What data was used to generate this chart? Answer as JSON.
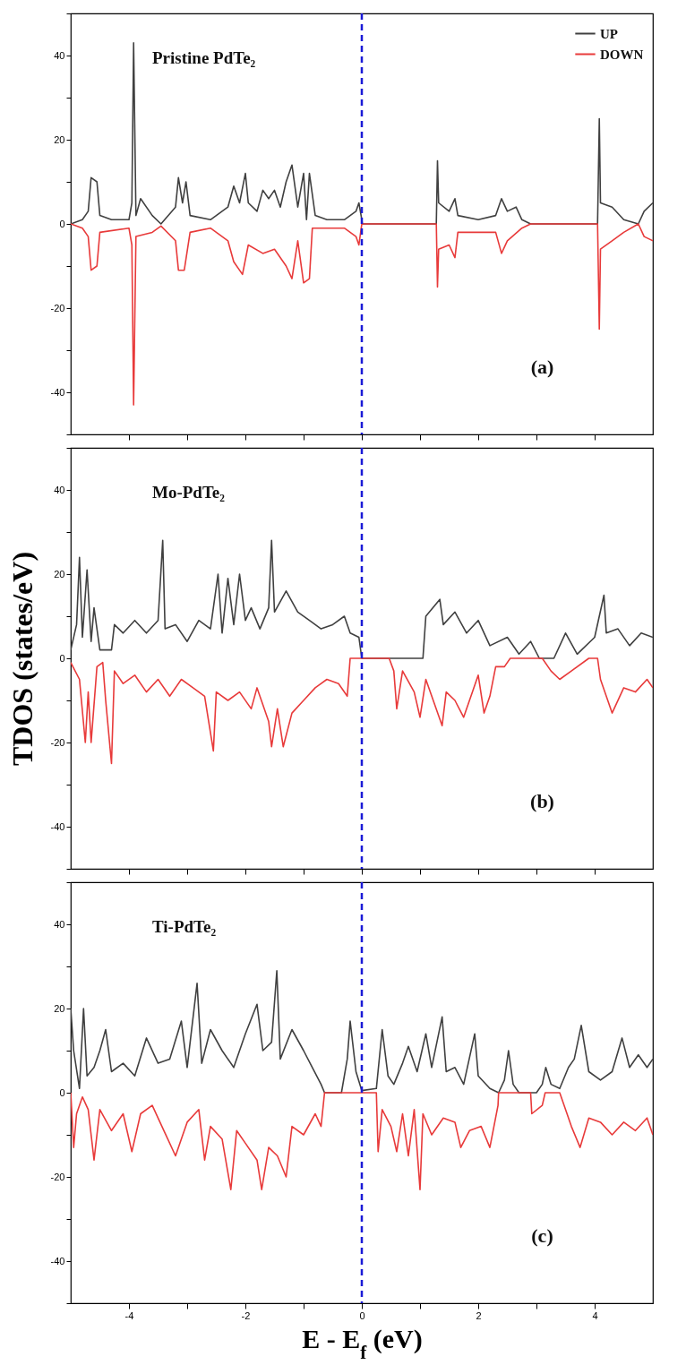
{
  "chart_data": [
    {
      "type": "line",
      "annotations": [
        "Pristine PdTe₂",
        "(a)"
      ],
      "xlim": [
        -5,
        5
      ],
      "xticks": [
        -4,
        {
          "value": -3,
          "label": null
        },
        -2,
        {
          "value": -1,
          "label": null
        },
        0,
        {
          "value": 1,
          "label": null
        },
        2,
        {
          "value": 3,
          "label": null
        },
        4
      ],
      "ylim": [
        -50,
        50
      ],
      "yticks": [
        {
          "value": -50,
          "label": null
        },
        -40,
        {
          "value": -30,
          "label": null
        },
        -20,
        {
          "value": -10,
          "label": null
        },
        0,
        {
          "value": 10,
          "label": null
        },
        20,
        {
          "value": 30,
          "label": null
        },
        40,
        {
          "value": 50,
          "label": null
        }
      ],
      "tick_labels": "y",
      "legend": "top right",
      "ref_lines": [
        {
          "axis": "x",
          "value": 0,
          "color": "#1a1ad6",
          "line_style": "dashed"
        }
      ],
      "series": [
        {
          "name": "UP",
          "color": "#404040",
          "x": [
            -5,
            -4.8,
            -4.7,
            -4.65,
            -4.55,
            -4.5,
            -4.3,
            -4.0,
            -3.95,
            -3.92,
            -3.88,
            -3.8,
            -3.6,
            -3.45,
            -3.2,
            -3.15,
            -3.08,
            -3.02,
            -2.95,
            -2.6,
            -2.3,
            -2.2,
            -2.1,
            -2.0,
            -1.95,
            -1.8,
            -1.7,
            -1.6,
            -1.5,
            -1.4,
            -1.3,
            -1.2,
            -1.1,
            -1.0,
            -0.95,
            -0.9,
            -0.8,
            -0.6,
            -0.3,
            -0.1,
            -0.05,
            0,
            0.01,
            1.28,
            1.3,
            1.32,
            1.5,
            1.6,
            1.65,
            2.0,
            2.3,
            2.4,
            2.5,
            2.65,
            2.75,
            2.9,
            4.05,
            4.08,
            4.1,
            4.3,
            4.5,
            4.75,
            4.85,
            5.0
          ],
          "values": [
            0,
            1,
            3,
            11,
            10,
            2,
            1,
            1,
            5,
            43,
            2,
            6,
            2,
            0,
            4,
            11,
            5,
            10,
            2,
            1,
            4,
            9,
            5,
            12,
            5,
            3,
            8,
            6,
            8,
            4,
            10,
            14,
            4,
            12,
            1,
            12,
            2,
            1,
            1,
            3,
            5,
            1,
            0,
            0,
            15,
            5,
            3,
            6,
            2,
            1,
            2,
            6,
            3,
            4,
            1,
            0,
            0,
            25,
            5,
            4,
            1,
            0,
            3,
            5
          ]
        },
        {
          "name": "DOWN",
          "color": "#e83a3a",
          "x": [
            -5,
            -4.8,
            -4.7,
            -4.65,
            -4.55,
            -4.5,
            -4.0,
            -3.95,
            -3.92,
            -3.88,
            -3.6,
            -3.45,
            -3.2,
            -3.15,
            -3.05,
            -2.95,
            -2.6,
            -2.3,
            -2.2,
            -2.05,
            -1.95,
            -1.7,
            -1.5,
            -1.3,
            -1.2,
            -1.1,
            -1.0,
            -0.9,
            -0.85,
            -0.3,
            -0.1,
            -0.05,
            0,
            1.28,
            1.3,
            1.32,
            1.5,
            1.6,
            1.65,
            2.3,
            2.4,
            2.5,
            2.75,
            2.9,
            4.05,
            4.08,
            4.1,
            4.3,
            4.5,
            4.75,
            4.85,
            5.0
          ],
          "values": [
            0,
            -1,
            -3,
            -11,
            -10,
            -2,
            -1,
            -5,
            -43,
            -3,
            -2,
            -0.5,
            -4,
            -11,
            -11,
            -2,
            -1,
            -4,
            -9,
            -12,
            -5,
            -7,
            -6,
            -10,
            -13,
            -4,
            -14,
            -13,
            -1,
            -1,
            -3,
            -5,
            0,
            0,
            -15,
            -6,
            -5,
            -8,
            -2,
            -2,
            -7,
            -4,
            -1,
            0,
            0,
            -25,
            -6,
            -4,
            -2,
            0,
            -3,
            -4
          ]
        }
      ]
    },
    {
      "type": "line",
      "ylabel": "TDOS (states/eV)",
      "annotations": [
        "Mo-PdTe₂",
        "(b)"
      ],
      "xlim": [
        -5,
        5
      ],
      "xticks": [
        -4,
        {
          "value": -3,
          "label": null
        },
        -2,
        {
          "value": -1,
          "label": null
        },
        0,
        {
          "value": 1,
          "label": null
        },
        2,
        {
          "value": 3,
          "label": null
        },
        4
      ],
      "ylim": [
        -50,
        50
      ],
      "yticks": [
        {
          "value": -50,
          "label": null
        },
        -40,
        {
          "value": -30,
          "label": null
        },
        -20,
        {
          "value": -10,
          "label": null
        },
        0,
        {
          "value": 10,
          "label": null
        },
        20,
        {
          "value": 30,
          "label": null
        },
        40,
        {
          "value": 50,
          "label": null
        }
      ],
      "tick_labels": "y",
      "legend": "top right",
      "ref_lines": [
        {
          "axis": "x",
          "value": 0,
          "color": "#1a1ad6",
          "line_style": "dashed"
        }
      ],
      "series": [
        {
          "name": "UP",
          "color": "#404040",
          "x": [
            -5,
            -4.9,
            -4.85,
            -4.8,
            -4.72,
            -4.65,
            -4.6,
            -4.5,
            -4.3,
            -4.25,
            -4.1,
            -3.9,
            -3.7,
            -3.5,
            -3.42,
            -3.38,
            -3.2,
            -3.0,
            -2.8,
            -2.6,
            -2.47,
            -2.4,
            -2.3,
            -2.2,
            -2.1,
            -2.0,
            -1.9,
            -1.75,
            -1.6,
            -1.55,
            -1.5,
            -1.3,
            -1.1,
            -0.9,
            -0.7,
            -0.5,
            -0.3,
            -0.2,
            -0.05,
            0,
            1.05,
            1.1,
            1.34,
            1.4,
            1.6,
            1.8,
            2.0,
            2.2,
            2.5,
            2.7,
            2.9,
            3.05,
            3.3,
            3.5,
            3.7,
            4.0,
            4.16,
            4.2,
            4.4,
            4.6,
            4.8,
            5.0
          ],
          "values": [
            2,
            8,
            24,
            5,
            21,
            4,
            12,
            2,
            2,
            8,
            6,
            9,
            6,
            9,
            28,
            7,
            8,
            4,
            9,
            7,
            20,
            6,
            19,
            8,
            20,
            9,
            12,
            7,
            12,
            28,
            11,
            16,
            11,
            9,
            7,
            8,
            10,
            6,
            5,
            0,
            0,
            10,
            14,
            8,
            11,
            6,
            9,
            3,
            5,
            1,
            4,
            0,
            0,
            6,
            1,
            5,
            15,
            6,
            7,
            3,
            6,
            5
          ]
        },
        {
          "name": "DOWN",
          "color": "#e83a3a",
          "x": [
            -5,
            -4.85,
            -4.75,
            -4.7,
            -4.65,
            -4.55,
            -4.45,
            -4.4,
            -4.3,
            -4.25,
            -4.1,
            -3.9,
            -3.7,
            -3.5,
            -3.3,
            -3.1,
            -2.9,
            -2.7,
            -2.55,
            -2.5,
            -2.3,
            -2.1,
            -1.9,
            -1.8,
            -1.6,
            -1.55,
            -1.45,
            -1.35,
            -1.2,
            -1.0,
            -0.8,
            -0.6,
            -0.4,
            -0.25,
            -0.2,
            0.47,
            0.55,
            0.6,
            0.7,
            0.9,
            1.0,
            1.1,
            1.38,
            1.45,
            1.6,
            1.75,
            2.0,
            2.1,
            2.2,
            2.3,
            2.45,
            2.55,
            3.1,
            3.25,
            3.4,
            3.6,
            3.9,
            4.05,
            4.1,
            4.2,
            4.3,
            4.5,
            4.7,
            4.9,
            5.0
          ],
          "values": [
            -1,
            -5,
            -20,
            -8,
            -20,
            -2,
            -1,
            -10,
            -25,
            -3,
            -6,
            -4,
            -8,
            -5,
            -9,
            -5,
            -7,
            -9,
            -22,
            -8,
            -10,
            -8,
            -12,
            -7,
            -15,
            -21,
            -12,
            -21,
            -13,
            -10,
            -7,
            -5,
            -6,
            -9,
            0,
            0,
            -3,
            -12,
            -3,
            -8,
            -14,
            -5,
            -16,
            -8,
            -10,
            -14,
            -4,
            -13,
            -9,
            -2,
            -2,
            0,
            0,
            -3,
            -5,
            -3,
            0,
            0,
            -5,
            -9,
            -13,
            -7,
            -8,
            -5,
            -7
          ]
        }
      ]
    },
    {
      "type": "line",
      "xlabel": "E - E$_{f}$ (eV)",
      "annotations": [
        "Ti-PdTe₂",
        "(c)"
      ],
      "xlim": [
        -5,
        5
      ],
      "xticks": [
        -4,
        {
          "value": -3,
          "label": null
        },
        -2,
        {
          "value": -1,
          "label": null
        },
        0,
        {
          "value": 1,
          "label": null
        },
        2,
        {
          "value": 3,
          "label": null
        },
        4
      ],
      "ylim": [
        -50,
        50
      ],
      "yticks": [
        {
          "value": -50,
          "label": null
        },
        -40,
        {
          "value": -30,
          "label": null
        },
        -20,
        {
          "value": -10,
          "label": null
        },
        0,
        {
          "value": 10,
          "label": null
        },
        20,
        {
          "value": 30,
          "label": null
        },
        40,
        {
          "value": 50,
          "label": null
        }
      ],
      "legend": "top right",
      "ref_lines": [
        {
          "axis": "x",
          "value": 0,
          "color": "#1a1ad6",
          "line_style": "dashed"
        }
      ],
      "series": [
        {
          "name": "UP",
          "color": "#404040",
          "x": [
            -5,
            -4.95,
            -4.85,
            -4.78,
            -4.72,
            -4.6,
            -4.5,
            -4.4,
            -4.3,
            -4.1,
            -3.9,
            -3.7,
            -3.5,
            -3.3,
            -3.1,
            -3.0,
            -2.83,
            -2.75,
            -2.6,
            -2.4,
            -2.2,
            -2.0,
            -1.8,
            -1.7,
            -1.55,
            -1.46,
            -1.4,
            -1.2,
            -1.0,
            -0.85,
            -0.7,
            -0.64,
            -0.35,
            -0.25,
            -0.2,
            -0.1,
            0,
            0.25,
            0.35,
            0.45,
            0.55,
            0.7,
            0.8,
            0.95,
            1.1,
            1.2,
            1.38,
            1.45,
            1.6,
            1.75,
            1.94,
            2.0,
            2.2,
            2.35,
            2.45,
            2.52,
            2.6,
            2.7,
            3.0,
            3.1,
            3.16,
            3.25,
            3.4,
            3.55,
            3.65,
            3.77,
            3.9,
            4.1,
            4.3,
            4.47,
            4.6,
            4.75,
            4.9,
            5.0
          ],
          "values": [
            20,
            10,
            1,
            20,
            4,
            6,
            10,
            15,
            5,
            7,
            4,
            13,
            7,
            8,
            17,
            6,
            26,
            7,
            15,
            10,
            6,
            14,
            21,
            10,
            12,
            29,
            8,
            15,
            10,
            6,
            2,
            0,
            0,
            8,
            17,
            5,
            0.5,
            1,
            15,
            4,
            2,
            7,
            11,
            5,
            14,
            6,
            18,
            5,
            6,
            2,
            14,
            4,
            1,
            0,
            3,
            10,
            2,
            0,
            0,
            2,
            6,
            2,
            1,
            6,
            8,
            16,
            5,
            3,
            5,
            13,
            6,
            9,
            6,
            8
          ]
        },
        {
          "name": "DOWN",
          "color": "#e83a3a",
          "x": [
            -5,
            -4.95,
            -4.9,
            -4.8,
            -4.7,
            -4.6,
            -4.5,
            -4.3,
            -4.1,
            -3.95,
            -3.8,
            -3.6,
            -3.4,
            -3.2,
            -3.0,
            -2.8,
            -2.7,
            -2.6,
            -2.4,
            -2.25,
            -2.15,
            -2.0,
            -1.8,
            -1.72,
            -1.6,
            -1.45,
            -1.3,
            -1.2,
            -1.0,
            -0.8,
            -0.7,
            -0.64,
            0.25,
            0.28,
            0.35,
            0.5,
            0.6,
            0.7,
            0.8,
            0.9,
            1.0,
            1.05,
            1.2,
            1.4,
            1.6,
            1.7,
            1.85,
            2.05,
            2.2,
            2.34,
            2.35,
            2.9,
            2.92,
            3.1,
            3.15,
            3.4,
            3.5,
            3.6,
            3.75,
            3.9,
            4.1,
            4.3,
            4.5,
            4.7,
            4.9,
            5.0
          ],
          "values": [
            0,
            -13,
            -5,
            -1,
            -4,
            -16,
            -4,
            -9,
            -5,
            -14,
            -5,
            -3,
            -9,
            -15,
            -7,
            -4,
            -16,
            -8,
            -11,
            -23,
            -9,
            -12,
            -16,
            -23,
            -13,
            -15,
            -20,
            -8,
            -10,
            -5,
            -8,
            0,
            0,
            -14,
            -4,
            -8,
            -14,
            -5,
            -15,
            -4,
            -23,
            -5,
            -10,
            -6,
            -7,
            -13,
            -9,
            -8,
            -13,
            -3,
            0,
            0,
            -5,
            -3,
            0,
            0,
            -4,
            -8,
            -13,
            -6,
            -7,
            -10,
            -7,
            -9,
            -6,
            -10
          ]
        }
      ]
    }
  ]
}
